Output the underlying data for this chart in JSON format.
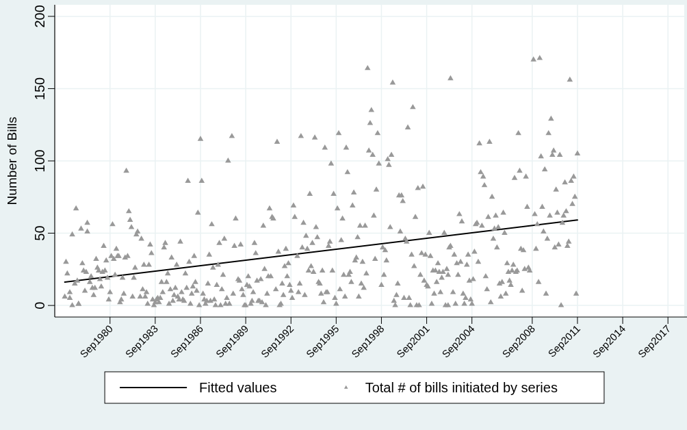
{
  "chart_data": {
    "type": "scatter",
    "ylabel": "Number of Bills",
    "xlim": [
      "1977-01",
      "2018-10"
    ],
    "ylim": [
      -8,
      208
    ],
    "xticks": [
      {
        "value": "1980-09",
        "label": "Sep1980"
      },
      {
        "value": "1983-09",
        "label": "Sep1983"
      },
      {
        "value": "1986-09",
        "label": "Sep1986"
      },
      {
        "value": "1989-09",
        "label": "Sep1989"
      },
      {
        "value": "1992-09",
        "label": "Sep1992"
      },
      {
        "value": "1995-09",
        "label": "Sep1995"
      },
      {
        "value": "1998-09",
        "label": "Sep1998"
      },
      {
        "value": "2001-09",
        "label": "Sep2001"
      },
      {
        "value": "2004-09",
        "label": "Sep2004"
      },
      {
        "value": "2008-09",
        "label": "Sep2008"
      },
      {
        "value": "2011-09",
        "label": "Sep2011"
      },
      {
        "value": "2014-09",
        "label": "Sep2014"
      },
      {
        "value": "2017-09",
        "label": "Sep2017"
      }
    ],
    "yticks": [
      0,
      50,
      100,
      150,
      200
    ],
    "grid": true,
    "legend": "bottom",
    "marker": "triangle",
    "series": [
      {
        "type": "line",
        "name": "Fitted values",
        "color": "#000000",
        "marker": "none",
        "x": [
          "1977-09",
          "2011-09"
        ],
        "values": [
          16.2,
          59.1
        ]
      },
      {
        "name": "Total # of bills initiated by series",
        "color": "#999999",
        "x": [
          "1977-09",
          "1977-10",
          "1977-11",
          "1978-01",
          "1978-01",
          "1978-03",
          "1978-03",
          "1978-05",
          "1978-06",
          "1978-07",
          "1978-08",
          "1978-08",
          "1978-10",
          "1978-11",
          "1978-12",
          "1979-01",
          "1979-02",
          "1979-03",
          "1979-03",
          "1979-05",
          "1979-06",
          "1979-07",
          "1979-08",
          "1979-09",
          "1979-10",
          "1979-11",
          "1979-12",
          "1980-01",
          "1980-02",
          "1980-03",
          "1980-04",
          "1980-05",
          "1980-06",
          "1980-07",
          "1980-08",
          "1980-09",
          "1980-10",
          "1980-11",
          "1980-12",
          "1981-01",
          "1981-02",
          "1981-03",
          "1981-04",
          "1981-05",
          "1981-06",
          "1981-07",
          "1981-08",
          "1981-09",
          "1981-10",
          "1981-11",
          "1981-12",
          "1982-01",
          "1982-02",
          "1982-03",
          "1982-04",
          "1982-05",
          "1982-06",
          "1982-07",
          "1982-09",
          "1982-10",
          "1982-11",
          "1982-12",
          "1983-01",
          "1983-02",
          "1983-03",
          "1983-04",
          "1983-05",
          "1983-06",
          "1983-07",
          "1983-08",
          "1983-09",
          "1983-10",
          "1983-11",
          "1983-12",
          "1984-01",
          "1984-02",
          "1984-03",
          "1984-04",
          "1984-05",
          "1984-06",
          "1984-07",
          "1984-08",
          "1984-09",
          "1984-10",
          "1984-11",
          "1984-12",
          "1985-01",
          "1985-02",
          "1985-03",
          "1985-04",
          "1985-05",
          "1985-06",
          "1985-07",
          "1985-08",
          "1985-09",
          "1985-10",
          "1985-11",
          "1985-12",
          "1986-01",
          "1986-02",
          "1986-03",
          "1986-04",
          "1986-05",
          "1986-06",
          "1986-07",
          "1986-08",
          "1986-09",
          "1986-10",
          "1986-11",
          "1986-12",
          "1987-01",
          "1987-02",
          "1987-03",
          "1987-04",
          "1987-05",
          "1987-06",
          "1987-07",
          "1987-08",
          "1987-09",
          "1987-10",
          "1987-11",
          "1987-12",
          "1988-01",
          "1988-02",
          "1988-03",
          "1988-04",
          "1988-05",
          "1988-06",
          "1988-07",
          "1988-08",
          "1988-10",
          "1988-11",
          "1988-12",
          "1989-01",
          "1989-03",
          "1989-04",
          "1989-05",
          "1989-06",
          "1989-07",
          "1989-08",
          "1989-09",
          "1989-10",
          "1989-11",
          "1989-12",
          "1990-01",
          "1990-02",
          "1990-03",
          "1990-04",
          "1990-05",
          "1990-06",
          "1990-07",
          "1990-08",
          "1990-09",
          "1990-10",
          "1990-11",
          "1990-12",
          "1991-01",
          "1991-02",
          "1991-03",
          "1991-04",
          "1991-05",
          "1991-06",
          "1991-07",
          "1991-09",
          "1991-10",
          "1991-11",
          "1991-12",
          "1992-01",
          "1992-02",
          "1992-03",
          "1992-04",
          "1992-05",
          "1992-06",
          "1992-07",
          "1992-08",
          "1992-09",
          "1992-10",
          "1992-11",
          "1992-12",
          "1993-02",
          "1993-03",
          "1993-04",
          "1993-05",
          "1993-06",
          "1993-07",
          "1993-08",
          "1993-09",
          "1993-10",
          "1993-11",
          "1993-12",
          "1994-01",
          "1994-02",
          "1994-03",
          "1994-04",
          "1994-05",
          "1994-06",
          "1994-07",
          "1994-08",
          "1994-09",
          "1994-10",
          "1994-11",
          "1994-12",
          "1995-01",
          "1995-02",
          "1995-03",
          "1995-04",
          "1995-05",
          "1995-06",
          "1995-07",
          "1995-08",
          "1995-09",
          "1995-10",
          "1995-11",
          "1995-12",
          "1996-01",
          "1996-02",
          "1996-03",
          "1996-04",
          "1996-05",
          "1996-06",
          "1996-07",
          "1996-08",
          "1996-09",
          "1996-10",
          "1996-11",
          "1996-12",
          "1997-01",
          "1997-02",
          "1997-03",
          "1997-04",
          "1997-05",
          "1997-06",
          "1997-07",
          "1997-08",
          "1997-09",
          "1997-10",
          "1997-11",
          "1997-12",
          "1998-01",
          "1998-02",
          "1998-03",
          "1998-04",
          "1998-05",
          "1998-06",
          "1998-07",
          "1998-09",
          "1998-10",
          "1998-11",
          "1998-12",
          "1999-01",
          "1999-02",
          "1999-03",
          "1999-04",
          "1999-05",
          "1999-06",
          "1999-07",
          "1999-08",
          "1999-09",
          "1999-10",
          "1999-11",
          "1999-12",
          "2000-01",
          "2000-02",
          "2000-03",
          "2000-04",
          "2000-05",
          "2000-06",
          "2000-07",
          "2000-08",
          "2000-09",
          "2000-10",
          "2000-11",
          "2000-12",
          "2001-01",
          "2001-02",
          "2001-03",
          "2001-04",
          "2001-05",
          "2001-06",
          "2001-07",
          "2001-08",
          "2001-09",
          "2001-10",
          "2001-11",
          "2001-12",
          "2002-01",
          "2002-02",
          "2002-03",
          "2002-04",
          "2002-05",
          "2002-06",
          "2002-07",
          "2002-08",
          "2002-09",
          "2002-10",
          "2002-11",
          "2002-12",
          "2003-01",
          "2003-02",
          "2003-02",
          "2003-03",
          "2003-04",
          "2003-04",
          "2003-06",
          "2003-07",
          "2003-08",
          "2003-09",
          "2003-10",
          "2003-11",
          "2003-12",
          "2004-01",
          "2004-02",
          "2004-03",
          "2004-04",
          "2004-05",
          "2004-06",
          "2004-07",
          "2004-08",
          "2004-09",
          "2004-10",
          "2004-11",
          "2004-12",
          "2005-01",
          "2005-02",
          "2005-03",
          "2005-04",
          "2005-05",
          "2005-06",
          "2005-07",
          "2005-08",
          "2005-09",
          "2005-10",
          "2005-11",
          "2005-12",
          "2006-01",
          "2006-02",
          "2006-03",
          "2006-04",
          "2006-05",
          "2006-06",
          "2006-07",
          "2006-08",
          "2006-09",
          "2006-10",
          "2006-11",
          "2006-12",
          "2007-01",
          "2007-02",
          "2007-03",
          "2007-04",
          "2007-05",
          "2007-06",
          "2007-07",
          "2007-08",
          "2007-09",
          "2007-10",
          "2007-11",
          "2007-12",
          "2008-01",
          "2008-02",
          "2008-03",
          "2008-04",
          "2008-05",
          "2008-06",
          "2008-07",
          "2008-10",
          "2008-11",
          "2008-12",
          "2009-01",
          "2009-02",
          "2009-03",
          "2009-04",
          "2009-05",
          "2009-06",
          "2009-07",
          "2009-08",
          "2009-09",
          "2009-10",
          "2009-11",
          "2009-12",
          "2010-01",
          "2010-02",
          "2010-03",
          "2010-04",
          "2010-05",
          "2010-06",
          "2010-07",
          "2010-08",
          "2010-09",
          "2010-10",
          "2010-11",
          "2010-12",
          "2011-01",
          "2011-02",
          "2011-03",
          "2011-04",
          "2011-05",
          "2011-06",
          "2011-07",
          "2011-08",
          "2011-09"
        ],
        "values": [
          6,
          30,
          22,
          5,
          9,
          0,
          49,
          15,
          67,
          17,
          1,
          1,
          53,
          29,
          24,
          10,
          23,
          51,
          57,
          16,
          20,
          12,
          7,
          12,
          32,
          26,
          24,
          18,
          13,
          23,
          41,
          24,
          31,
          19,
          4,
          9,
          34,
          56,
          32,
          21,
          39,
          34,
          34,
          2,
          4,
          19,
          8,
          33,
          93,
          34,
          65,
          59,
          54,
          6,
          19,
          26,
          49,
          51,
          6,
          46,
          11,
          28,
          6,
          9,
          1,
          28,
          42,
          36,
          4,
          0,
          2,
          4,
          5,
          2,
          5,
          16,
          9,
          40,
          43,
          16,
          22,
          1,
          11,
          33,
          3,
          7,
          12,
          28,
          6,
          4,
          44,
          9,
          4,
          3,
          22,
          12,
          86,
          30,
          1,
          8,
          13,
          34,
          16,
          10,
          64,
          0,
          115,
          86,
          8,
          4,
          1,
          3,
          15,
          35,
          3,
          56,
          26,
          4,
          0,
          14,
          28,
          43,
          0,
          11,
          21,
          46,
          1,
          5,
          100,
          1,
          117,
          8,
          41,
          60,
          18,
          17,
          42,
          11,
          7,
          0,
          0,
          14,
          20,
          13,
          1,
          3,
          9,
          43,
          36,
          17,
          3,
          3,
          18,
          2,
          55,
          25,
          0,
          8,
          20,
          67,
          20,
          61,
          60,
          11,
          113,
          37,
          0,
          1,
          15,
          7,
          27,
          39,
          20,
          29,
          14,
          10,
          5,
          69,
          61,
          34,
          9,
          15,
          117,
          40,
          57,
          7,
          48,
          39,
          24,
          77,
          27,
          43,
          23,
          116,
          54,
          47,
          16,
          15,
          8,
          24,
          2,
          109,
          9,
          9,
          41,
          44,
          98,
          24,
          77,
          5,
          1,
          67,
          119,
          11,
          45,
          60,
          21,
          6,
          109,
          92,
          21,
          23,
          16,
          69,
          78,
          31,
          33,
          47,
          6,
          55,
          15,
          30,
          12,
          55,
          22,
          164,
          107,
          126,
          135,
          104,
          62,
          32,
          80,
          119,
          98,
          14,
          40,
          21,
          38,
          31,
          101,
          97,
          54,
          104,
          154,
          3,
          0,
          7,
          15,
          76,
          51,
          76,
          72,
          5,
          46,
          44,
          123,
          5,
          0,
          35,
          137,
          27,
          61,
          0,
          81,
          0,
          21,
          36,
          82,
          17,
          35,
          14,
          13,
          50,
          34,
          1,
          24,
          8,
          24,
          16,
          29,
          23,
          9,
          19,
          23,
          50,
          0,
          25,
          0,
          21,
          40,
          41,
          157,
          9,
          35,
          1,
          29,
          21,
          63,
          30,
          58,
          8,
          1,
          5,
          28,
          35,
          17,
          4,
          1,
          18,
          37,
          56,
          57,
          30,
          112,
          92,
          55,
          89,
          83,
          20,
          11,
          61,
          113,
          2,
          75,
          46,
          53,
          62,
          40,
          54,
          15,
          6,
          16,
          64,
          50,
          8,
          29,
          23,
          17,
          14,
          24,
          28,
          88,
          23,
          24,
          119,
          93,
          39,
          10,
          38,
          25,
          89,
          68,
          26,
          24,
          170,
          63,
          39,
          56,
          16,
          171,
          103,
          68,
          51,
          94,
          8,
          46,
          119,
          62,
          129,
          104,
          107,
          40,
          80,
          64,
          42,
          104,
          0,
          57,
          62,
          85,
          65,
          41,
          44,
          156,
          86,
          70,
          89,
          75,
          8,
          105
        ]
      }
    ]
  }
}
